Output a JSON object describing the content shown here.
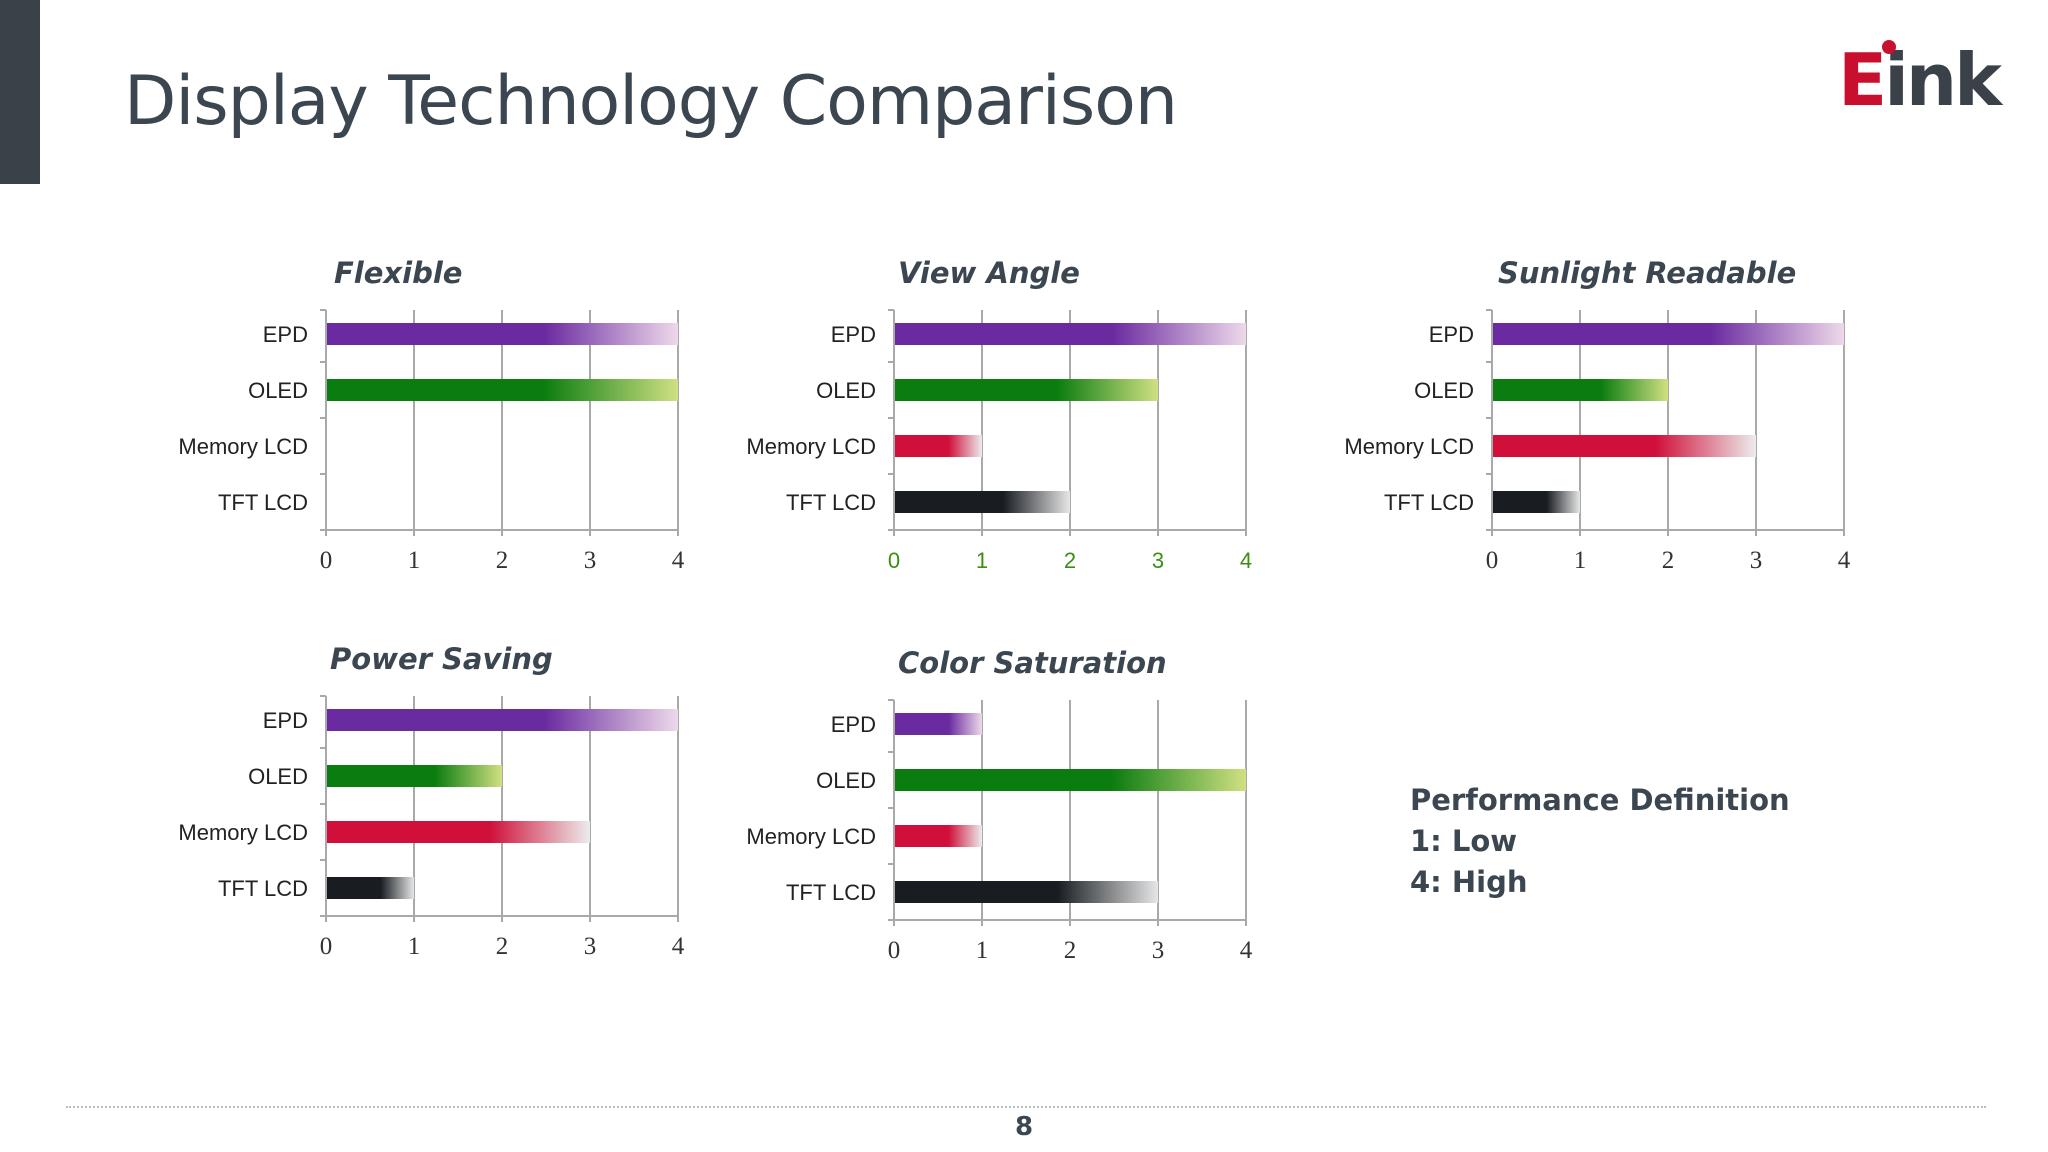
{
  "slide": {
    "title": "Display Technology Comparison",
    "page_number": "8"
  },
  "logo": {
    "letter_e": "E",
    "rest": "ink"
  },
  "note": {
    "heading": "Performance Definition",
    "low": "1: Low",
    "high": "4: High"
  },
  "colors": {
    "EPD": [
      "#6a2aa0",
      "#eed9ea"
    ],
    "OLED": [
      "#0b7d10",
      "#cfe082"
    ],
    "Memory LCD": [
      "#d0103a",
      "#ececec"
    ],
    "TFT LCD": [
      "#191d22",
      "#e6e6e6"
    ],
    "accent": "#c8102e",
    "title": "#3b4650"
  },
  "chart_data": [
    {
      "type": "bar",
      "orientation": "horizontal",
      "title": "Flexible",
      "categories": [
        "EPD",
        "OLED",
        "Memory LCD",
        "TFT LCD"
      ],
      "values": [
        4,
        4,
        0,
        0
      ],
      "xlim": [
        0,
        4
      ],
      "xticks": [
        "0",
        "1",
        "2",
        "3",
        "4"
      ],
      "grid": true
    },
    {
      "type": "bar",
      "orientation": "horizontal",
      "title": "View Angle",
      "categories": [
        "EPD",
        "OLED",
        "Memory LCD",
        "TFT LCD"
      ],
      "values": [
        4,
        3,
        1,
        2
      ],
      "xlim": [
        0,
        4
      ],
      "xticks": [
        "0",
        "1",
        "2",
        "3",
        "4"
      ],
      "tick_color": "#3c8f12",
      "grid": true
    },
    {
      "type": "bar",
      "orientation": "horizontal",
      "title": "Sunlight Readable",
      "categories": [
        "EPD",
        "OLED",
        "Memory LCD",
        "TFT LCD"
      ],
      "values": [
        4,
        2,
        3,
        1
      ],
      "xlim": [
        0,
        4
      ],
      "xticks": [
        "0",
        "1",
        "2",
        "3",
        "4"
      ],
      "grid": true
    },
    {
      "type": "bar",
      "orientation": "horizontal",
      "title": "Power Saving",
      "categories": [
        "EPD",
        "OLED",
        "Memory LCD",
        "TFT LCD"
      ],
      "values": [
        4,
        2,
        3,
        1
      ],
      "xlim": [
        0,
        4
      ],
      "xticks": [
        "0",
        "1",
        "2",
        "3",
        "4"
      ],
      "grid": true
    },
    {
      "type": "bar",
      "orientation": "horizontal",
      "title": "Color Saturation",
      "categories": [
        "EPD",
        "OLED",
        "Memory LCD",
        "TFT LCD"
      ],
      "values": [
        1,
        4,
        1,
        3
      ],
      "xlim": [
        0,
        4
      ],
      "xticks": [
        "0",
        "1",
        "2",
        "3",
        "4"
      ],
      "grid": true
    }
  ]
}
